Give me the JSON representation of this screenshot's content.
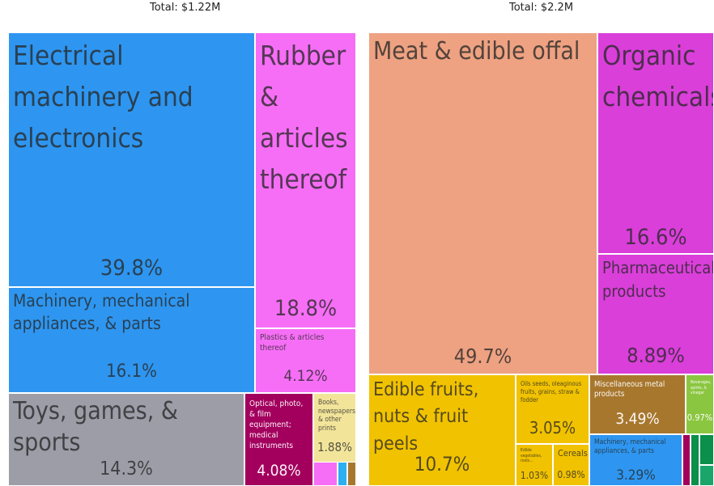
{
  "chart_data": [
    {
      "type": "treemap",
      "title": "Total: $1.22M",
      "categories": [
        {
          "name": "Electrical machinery and electronics",
          "percent": 39.8,
          "color": "#2e96f0"
        },
        {
          "name": "Rubber & articles thereof",
          "percent": 18.8,
          "color": "#f66ef6"
        },
        {
          "name": "Machinery, mechanical appliances, & parts",
          "percent": 16.1,
          "color": "#2e96f0"
        },
        {
          "name": "Toys, games, & sports",
          "percent": 14.3,
          "color": "#9d9da8"
        },
        {
          "name": "Plastics & articles thereof",
          "percent": 4.12,
          "color": "#f66ef6"
        },
        {
          "name": "Optical, photo, & film equipment; medical instruments",
          "percent": 4.08,
          "color": "#a3005e"
        },
        {
          "name": "Books, newspapers, & other prints",
          "percent": 1.88,
          "color": "#f2e59a"
        }
      ]
    },
    {
      "type": "treemap",
      "title": "Total: $2.2M",
      "categories": [
        {
          "name": "Meat & edible offal",
          "percent": 49.7,
          "color": "#eea282"
        },
        {
          "name": "Organic chemicals",
          "percent": 16.6,
          "color": "#da3fda"
        },
        {
          "name": "Edible fruits, nuts & fruit peels",
          "percent": 10.7,
          "color": "#f1c200"
        },
        {
          "name": "Pharmaceutical products",
          "percent": 8.89,
          "color": "#da3fda"
        },
        {
          "name": "Miscellaneous metal products",
          "percent": 3.49,
          "color": "#a8772e"
        },
        {
          "name": "Machinery, mechanical appliances, & parts",
          "percent": 3.29,
          "color": "#2e96f0"
        },
        {
          "name": "Oils seeds, oleaginous fruits, grains, straw & fodder",
          "percent": 3.05,
          "color": "#f1c200"
        },
        {
          "name": "Edible vegetables, roots...",
          "percent": 1.03,
          "color": "#f1c200"
        },
        {
          "name": "Cereals",
          "percent": 0.98,
          "color": "#f1c200"
        },
        {
          "name": "Beverages, spirits, & vinegar",
          "percent": 0.97,
          "color": "#8bc640"
        }
      ]
    }
  ]
}
